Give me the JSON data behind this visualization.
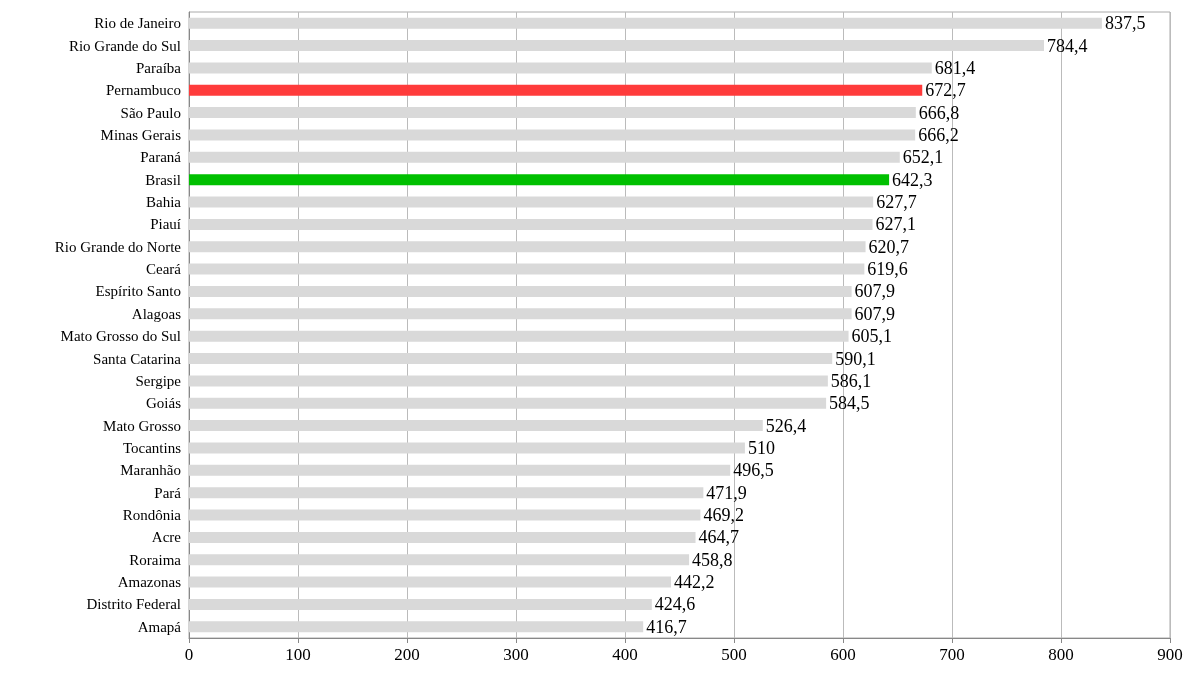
{
  "chart_data": {
    "type": "bar",
    "orientation": "horizontal",
    "categories": [
      "Rio de Janeiro",
      "Rio Grande do Sul",
      "Paraíba",
      "Pernambuco",
      "São Paulo",
      "Minas Gerais",
      "Paraná",
      "Brasil",
      "Bahia",
      "Piauí",
      "Rio Grande do Norte",
      "Ceará",
      "Espírito Santo",
      "Alagoas",
      "Mato Grosso do Sul",
      "Santa Catarina",
      "Sergipe",
      "Goiás",
      "Mato Grosso",
      "Tocantins",
      "Maranhão",
      "Pará",
      "Rondônia",
      "Acre",
      "Roraima",
      "Amazonas",
      "Distrito Federal",
      "Amapá"
    ],
    "values": [
      837.5,
      784.4,
      681.4,
      672.7,
      666.8,
      666.2,
      652.1,
      642.3,
      627.7,
      627.1,
      620.7,
      619.6,
      607.9,
      607.9,
      605.1,
      590.1,
      586.1,
      584.5,
      526.4,
      510,
      496.5,
      471.9,
      469.2,
      464.7,
      458.8,
      442.2,
      424.6,
      416.7
    ],
    "value_labels": [
      "837,5",
      "784,4",
      "681,4",
      "672,7",
      "666,8",
      "666,2",
      "652,1",
      "642,3",
      "627,7",
      "627,1",
      "620,7",
      "619,6",
      "607,9",
      "607,9",
      "605,1",
      "590,1",
      "586,1",
      "584,5",
      "526,4",
      "510",
      "496,5",
      "471,9",
      "469,2",
      "464,7",
      "458,8",
      "442,2",
      "424,6",
      "416,7"
    ],
    "colors": [
      "#d9d9d9",
      "#d9d9d9",
      "#d9d9d9",
      "#ff3b3b",
      "#d9d9d9",
      "#d9d9d9",
      "#d9d9d9",
      "#00c000",
      "#d9d9d9",
      "#d9d9d9",
      "#d9d9d9",
      "#d9d9d9",
      "#d9d9d9",
      "#d9d9d9",
      "#d9d9d9",
      "#d9d9d9",
      "#d9d9d9",
      "#d9d9d9",
      "#d9d9d9",
      "#d9d9d9",
      "#d9d9d9",
      "#d9d9d9",
      "#d9d9d9",
      "#d9d9d9",
      "#d9d9d9",
      "#d9d9d9",
      "#d9d9d9",
      "#d9d9d9"
    ],
    "xlim": [
      0,
      900
    ],
    "xticks": [
      0,
      100,
      200,
      300,
      400,
      500,
      600,
      700,
      800,
      900
    ],
    "grid": "x"
  }
}
